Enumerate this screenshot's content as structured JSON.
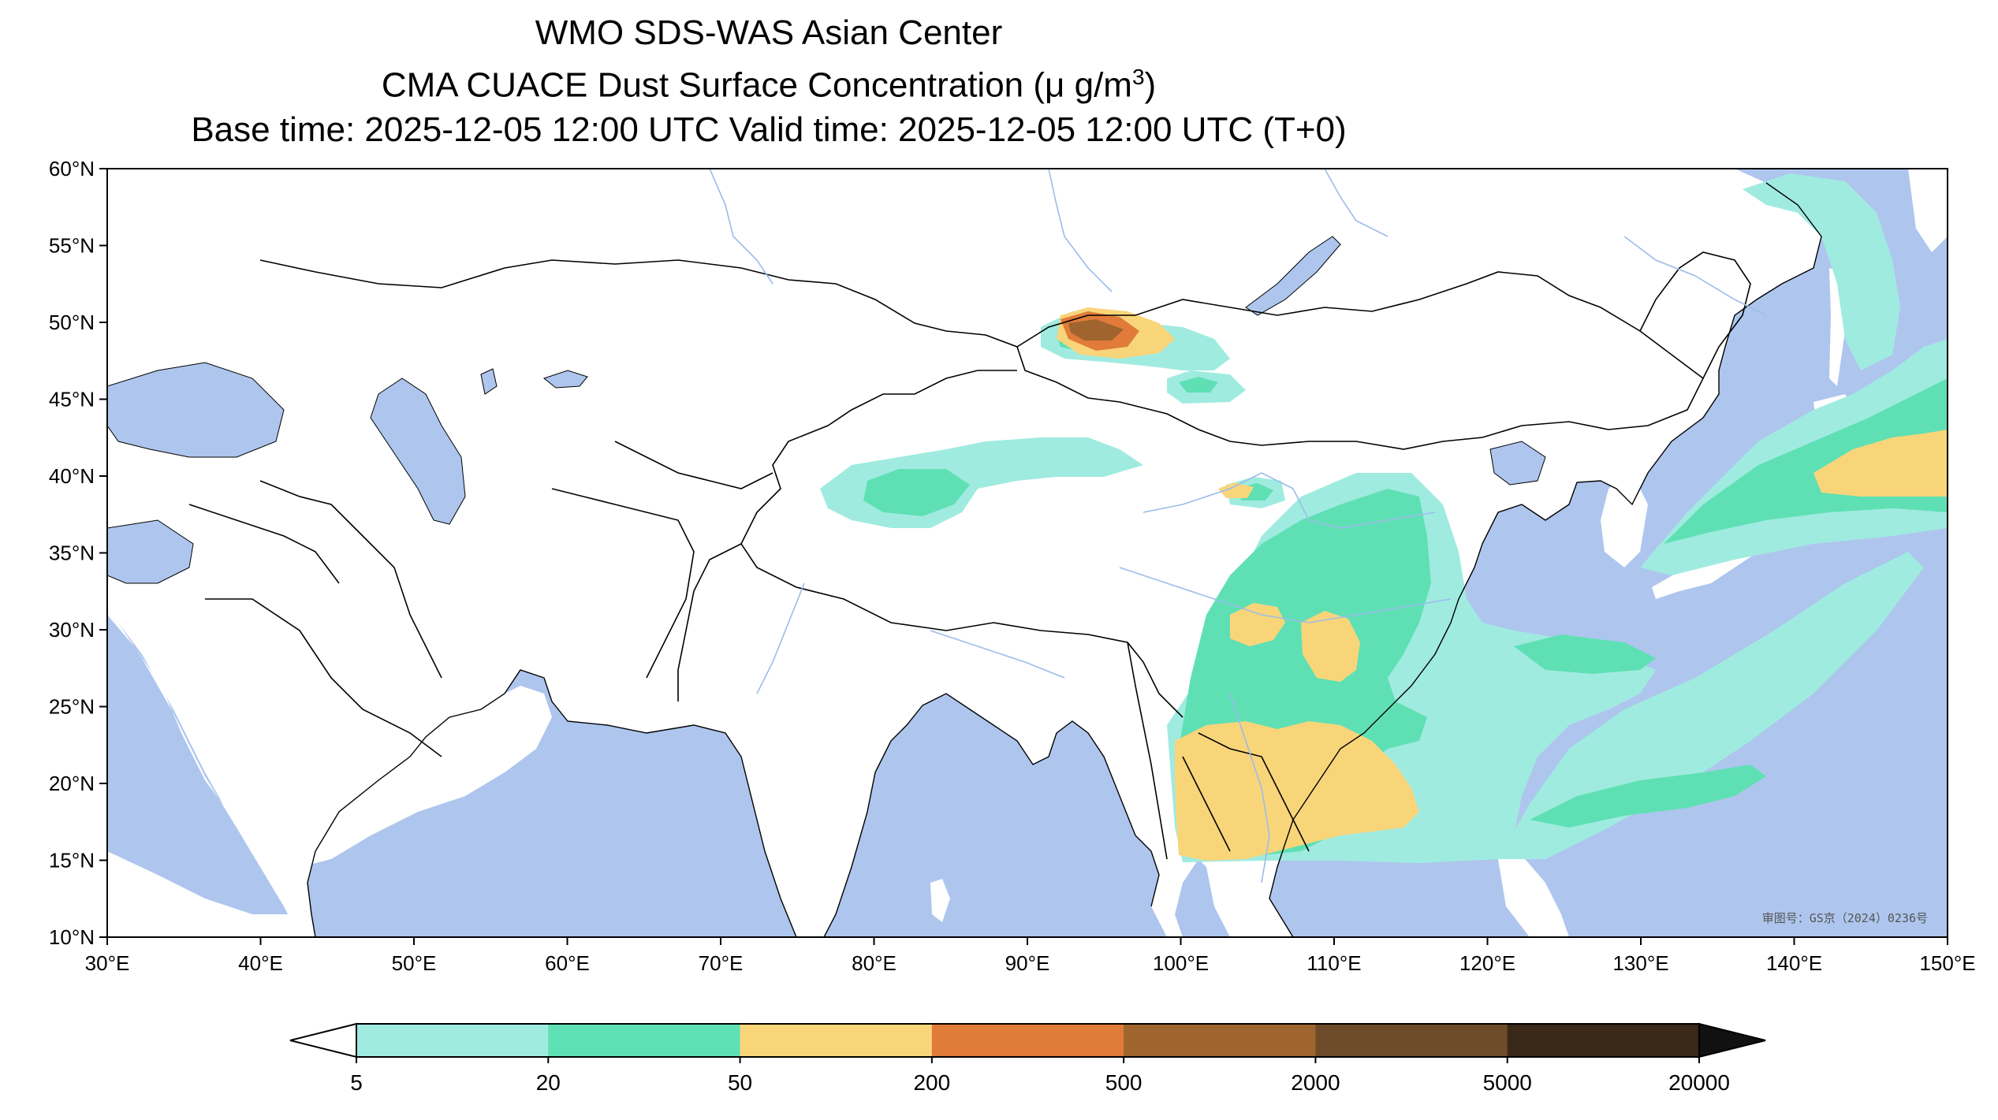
{
  "title": {
    "line1": "WMO SDS-WAS Asian Center",
    "line2_prefix": "CMA CUACE Dust Surface Concentration (",
    "line2_unit": "μ g/m",
    "line2_sup": "3",
    "line2_suffix": ")",
    "line3": "Base time: 2025-12-05 12:00 UTC Valid time: 2025-12-05 12:00 UTC (T+0)"
  },
  "map": {
    "lon_range": [
      30,
      150
    ],
    "lat_range": [
      10,
      60
    ],
    "x_ticks": [
      {
        "value": 30,
        "label": "30°E"
      },
      {
        "value": 40,
        "label": "40°E"
      },
      {
        "value": 50,
        "label": "50°E"
      },
      {
        "value": 60,
        "label": "60°E"
      },
      {
        "value": 70,
        "label": "70°E"
      },
      {
        "value": 80,
        "label": "80°E"
      },
      {
        "value": 90,
        "label": "90°E"
      },
      {
        "value": 100,
        "label": "100°E"
      },
      {
        "value": 110,
        "label": "110°E"
      },
      {
        "value": 120,
        "label": "120°E"
      },
      {
        "value": 130,
        "label": "130°E"
      },
      {
        "value": 140,
        "label": "140°E"
      },
      {
        "value": 150,
        "label": "150°E"
      }
    ],
    "y_ticks": [
      {
        "value": 60,
        "label": "60°N"
      },
      {
        "value": 55,
        "label": "55°N"
      },
      {
        "value": 50,
        "label": "50°N"
      },
      {
        "value": 45,
        "label": "45°N"
      },
      {
        "value": 40,
        "label": "40°N"
      },
      {
        "value": 35,
        "label": "35°N"
      },
      {
        "value": 30,
        "label": "30°N"
      },
      {
        "value": 25,
        "label": "25°N"
      },
      {
        "value": 20,
        "label": "20°N"
      },
      {
        "value": 15,
        "label": "15°N"
      },
      {
        "value": 10,
        "label": "10°N"
      }
    ],
    "watermark": "审图号：GS京（2024）0236号"
  },
  "colors": {
    "ocean": "#aec6ee",
    "land": "#ffffff",
    "level_5_20": "#a0ebe0",
    "level_20_50": "#5fe0b4",
    "level_50_200": "#f9d57a",
    "level_200_500": "#e07b39",
    "level_500_2000": "#a0642e",
    "level_2000_5000": "#6d4b2b",
    "level_5000_20000": "#3a2818"
  },
  "colorbar": {
    "bounds": [
      "5",
      "20",
      "50",
      "200",
      "500",
      "2000",
      "5000",
      "20000"
    ],
    "colors": [
      "#a0ebe0",
      "#5fe0b4",
      "#f9d57a",
      "#e07b39",
      "#a0642e",
      "#6d4b2b",
      "#3a2818"
    ],
    "under_color": "#ffffff",
    "over_color": "#111111"
  }
}
